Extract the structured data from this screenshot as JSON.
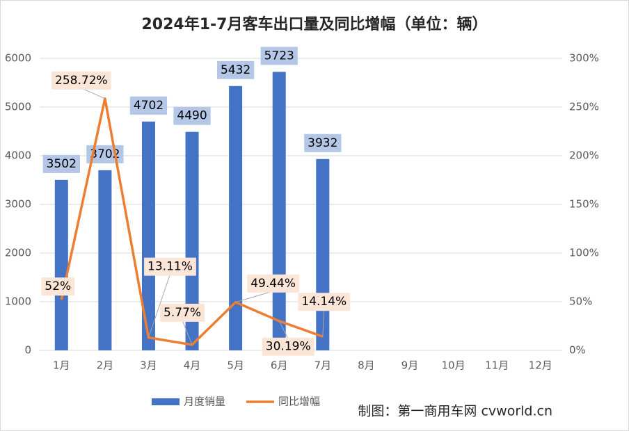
{
  "chart_data": {
    "type": "bar",
    "title": "2024年1-7月客车出口量及同比增幅（单位：辆）",
    "source": "制图：第一商用车网 cvworld.cn",
    "categories": [
      "1月",
      "2月",
      "3月",
      "4月",
      "5月",
      "6月",
      "7月",
      "8月",
      "9月",
      "10月",
      "11月",
      "12月"
    ],
    "series": [
      {
        "name": "月度销量",
        "type": "bar",
        "color": "#4472c4",
        "values": [
          3502,
          3702,
          4702,
          4490,
          5432,
          5723,
          3932,
          null,
          null,
          null,
          null,
          null
        ]
      },
      {
        "name": "同比增幅",
        "type": "line",
        "axis": "y2",
        "color": "#ed7d31",
        "values": [
          52,
          258.72,
          13.11,
          5.77,
          49.44,
          30.19,
          14.14,
          null,
          null,
          null,
          null,
          null
        ],
        "value_labels": [
          "52%",
          "258.72%",
          "13.11%",
          "5.77%",
          "49.44%",
          "30.19%",
          "14.14%",
          null,
          null,
          null,
          null,
          null
        ]
      }
    ],
    "ylim": [
      0,
      6000
    ],
    "yticks": [
      0,
      1000,
      2000,
      3000,
      4000,
      5000,
      6000
    ],
    "y2lim": [
      0,
      300
    ],
    "y2ticks": [
      {
        "value": 0,
        "label": "0%"
      },
      {
        "value": 50,
        "label": "50%"
      },
      {
        "value": 100,
        "label": "100%"
      },
      {
        "value": 150,
        "label": "150%"
      },
      {
        "value": 200,
        "label": "200%"
      },
      {
        "value": 250,
        "label": "250%"
      },
      {
        "value": 300,
        "label": "300%"
      }
    ],
    "grid": true,
    "legend": "bottom"
  }
}
